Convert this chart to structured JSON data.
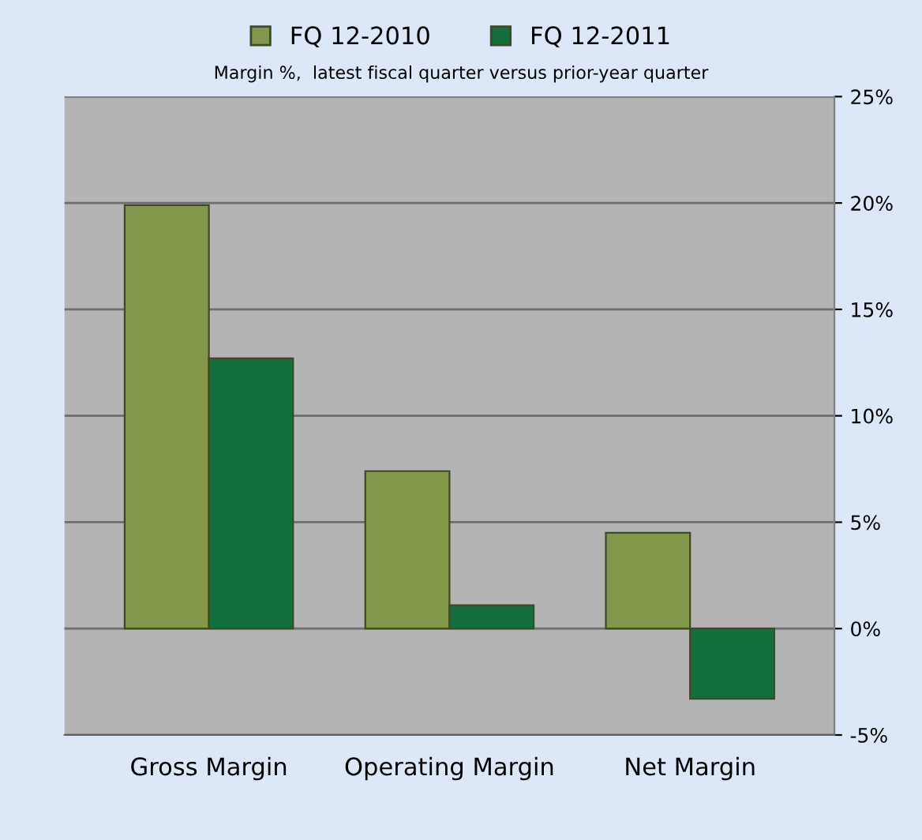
{
  "chart_data": {
    "type": "bar",
    "title": "Margin %,  latest fiscal quarter versus prior-year quarter",
    "categories": [
      "Gross Margin",
      "Operating Margin",
      "Net Margin"
    ],
    "series": [
      {
        "name": "FQ 12-2010",
        "color": "#82974a",
        "values": [
          19.9,
          7.4,
          4.5
        ]
      },
      {
        "name": "FQ 12-2011",
        "color": "#13703d",
        "values": [
          12.7,
          1.1,
          -3.3
        ]
      }
    ],
    "ylim": [
      -5,
      25
    ],
    "yticks": [
      {
        "value": -5,
        "label": "-5%"
      },
      {
        "value": 0,
        "label": "0%"
      },
      {
        "value": 5,
        "label": "5%"
      },
      {
        "value": 10,
        "label": "10%"
      },
      {
        "value": 15,
        "label": "15%"
      },
      {
        "value": 20,
        "label": "20%"
      },
      {
        "value": 25,
        "label": "25%"
      }
    ],
    "grid": "y",
    "legend": "top"
  }
}
